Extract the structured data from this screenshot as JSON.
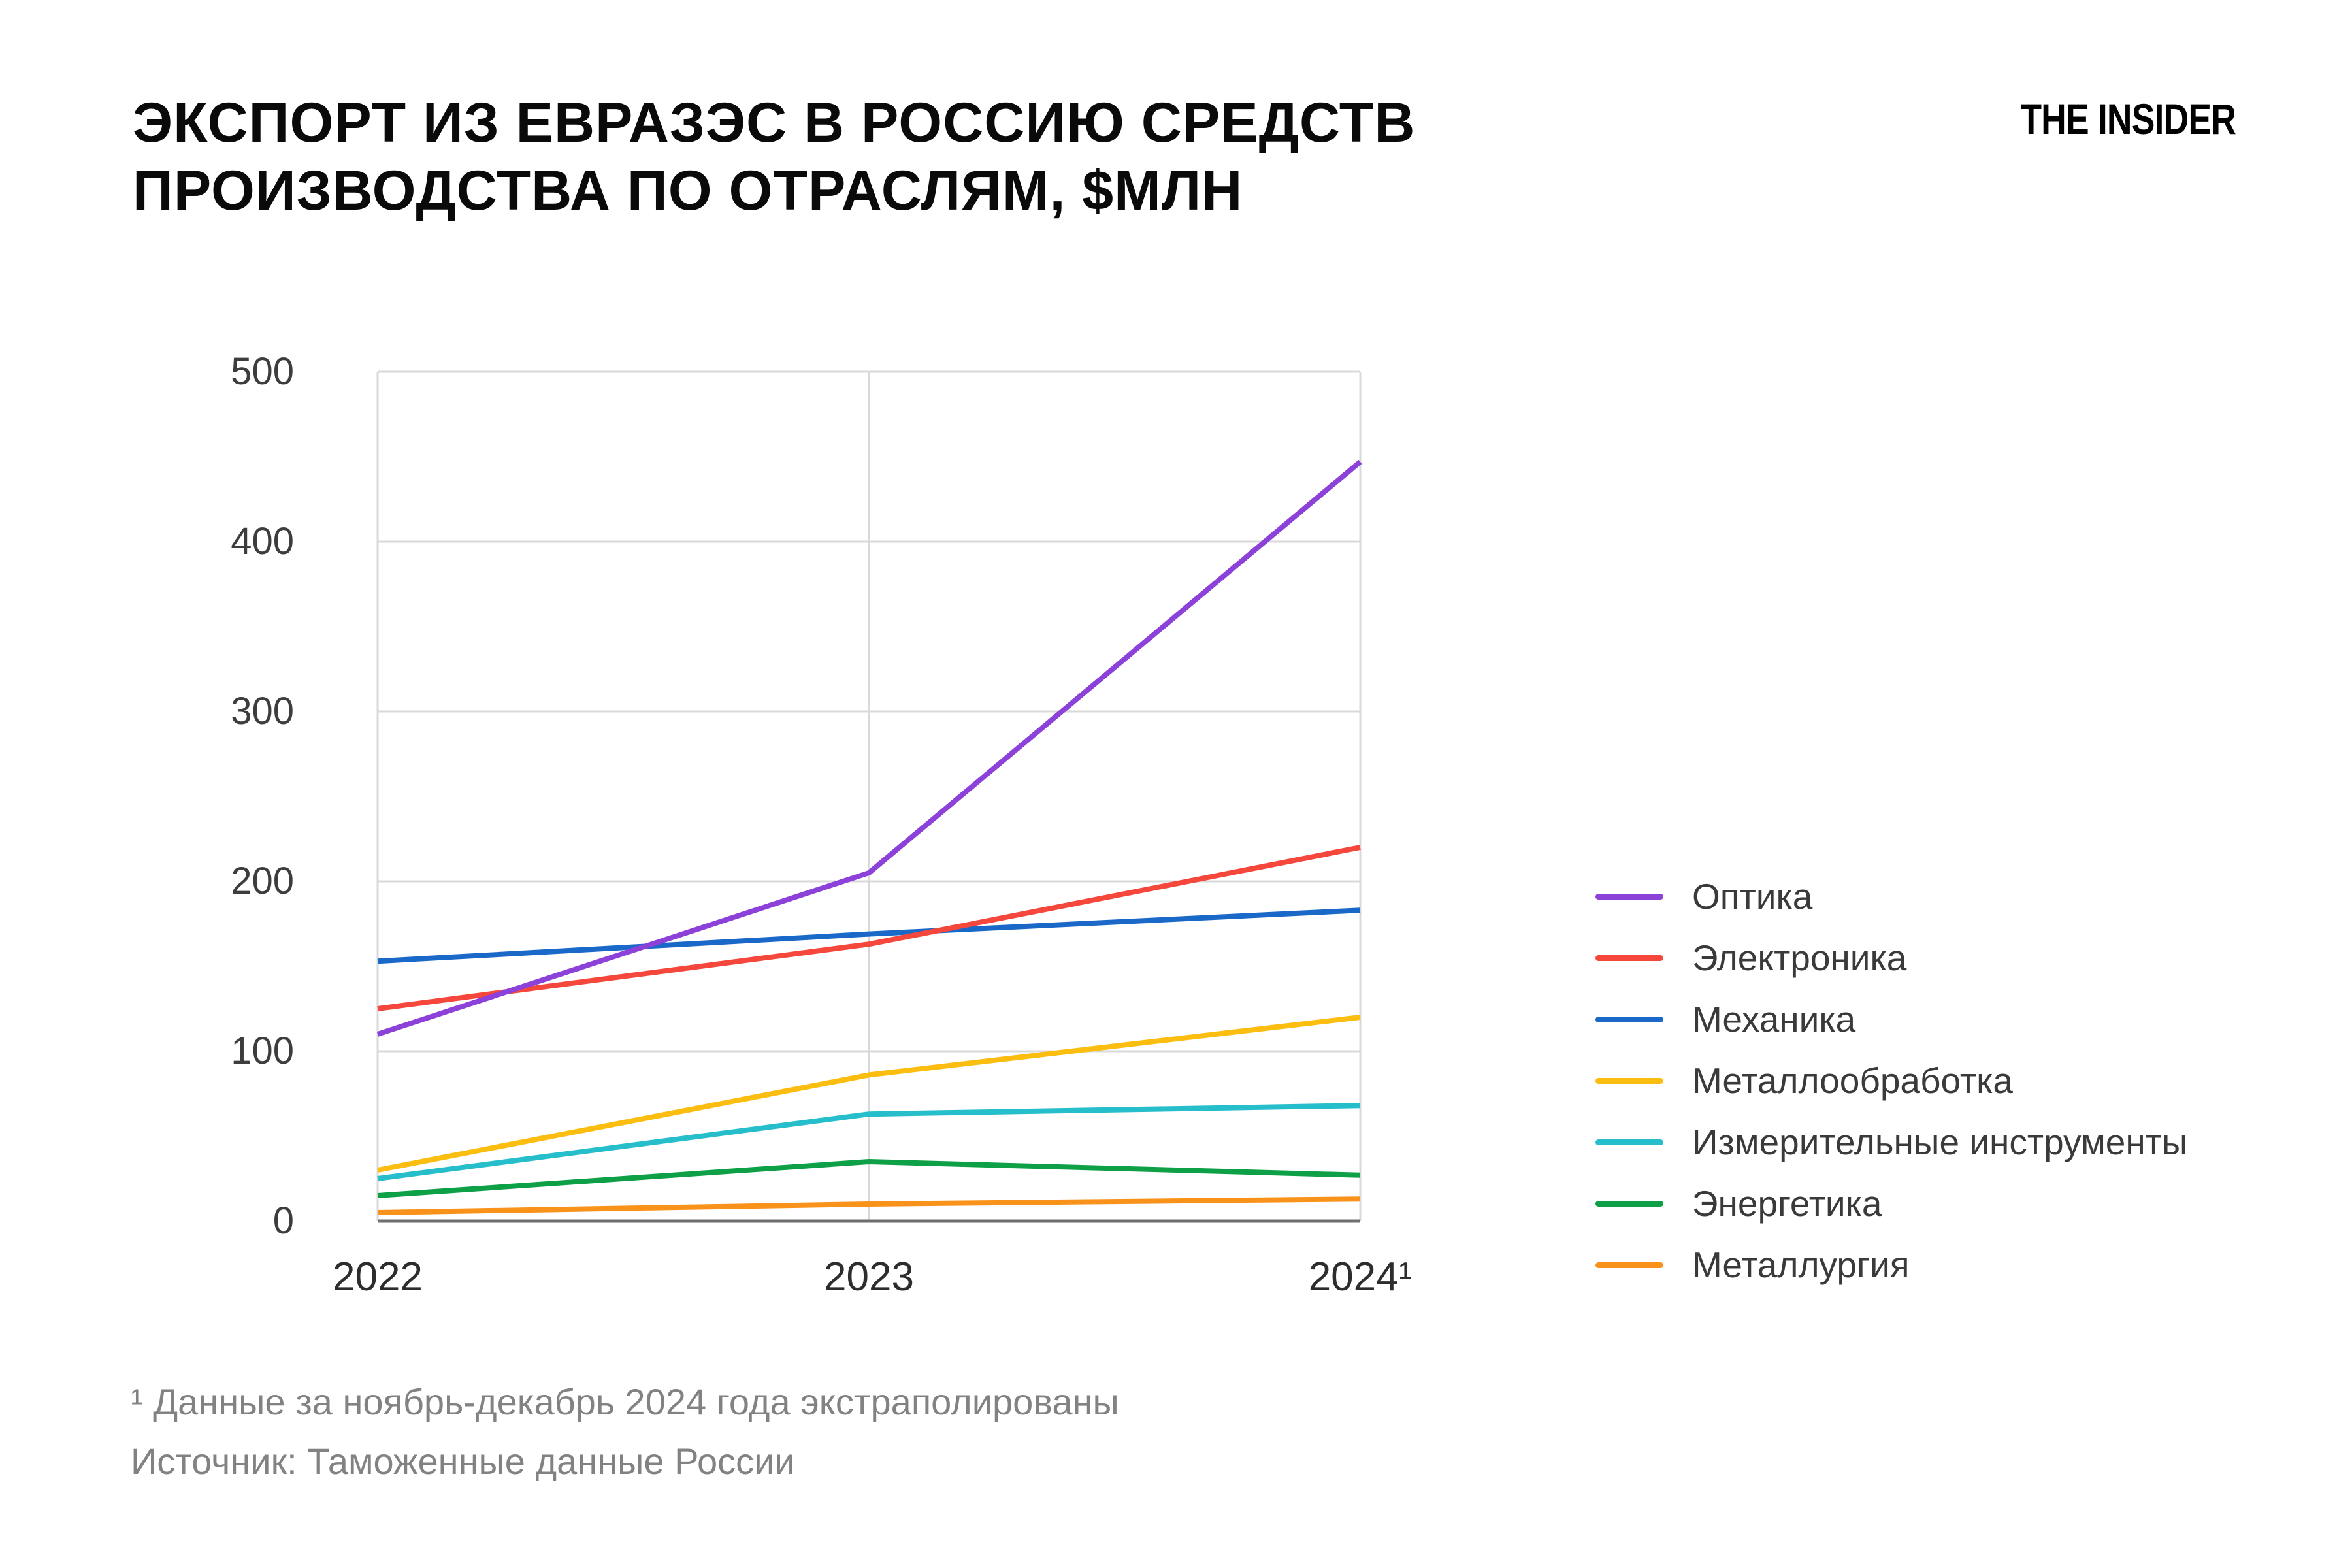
{
  "header": {
    "title_line1": "ЭКСПОРТ ИЗ ЕВРАЗЭС В РОССИЮ СРЕДСТВ",
    "title_line2": "ПРОИЗВОДСТВА ПО ОТРАСЛЯМ, $МЛН",
    "logo": "THE INSIDER"
  },
  "chart_data": {
    "type": "line",
    "title": "ЭКСПОРТ ИЗ ЕВРАЗЭС В РОССИЮ СРЕДСТВ ПРОИЗВОДСТВА ПО ОТРАСЛЯМ, $МЛН",
    "x_labels": [
      "2022",
      "2023",
      "2024¹"
    ],
    "ylim": [
      0,
      500
    ],
    "yticks": [
      0,
      100,
      200,
      300,
      400,
      500
    ],
    "grid": true,
    "legend_position": "right",
    "series": [
      {
        "name": "Оптика",
        "color": "#8C42D9",
        "values": [
          110,
          205,
          447
        ]
      },
      {
        "name": "Электроника",
        "color": "#F5473B",
        "values": [
          125,
          163,
          220
        ]
      },
      {
        "name": "Механика",
        "color": "#1A69C8",
        "values": [
          153,
          169,
          183
        ]
      },
      {
        "name": "Металлообработка",
        "color": "#FBBD10",
        "values": [
          30,
          86,
          120
        ]
      },
      {
        "name": "Измерительные инструменты",
        "color": "#27BECB",
        "values": [
          25,
          63,
          68
        ]
      },
      {
        "name": "Энергетика",
        "color": "#0EA047",
        "values": [
          15,
          35,
          27
        ]
      },
      {
        "name": "Металлургия",
        "color": "#F9921B",
        "values": [
          5,
          10,
          13
        ]
      }
    ],
    "colors": {
      "grid": "#D9D9D9",
      "axis": "#6E6E6E",
      "tick_text": "#3D3D3D",
      "muted_text": "#828282"
    }
  },
  "footnotes": {
    "note": "¹ Данные за ноябрь-декабрь 2024 года экстраполированы",
    "source": "Источник: Таможенные данные России"
  }
}
